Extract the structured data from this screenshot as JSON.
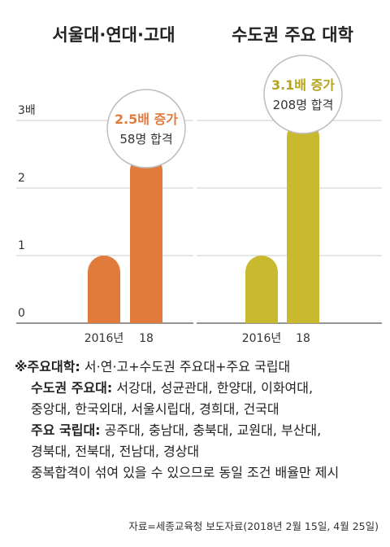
{
  "chart_data": [
    {
      "type": "bar",
      "title": "서울대·연대·고대",
      "categories": [
        "2016년",
        "18"
      ],
      "values": [
        1,
        2.5
      ],
      "ylim": [
        0,
        3
      ],
      "yticks": [
        "0",
        "1",
        "2",
        "3배"
      ],
      "bar_color": "#E07B3C",
      "callout": {
        "headline": "2.5배 증가",
        "sub": "58명 합격",
        "headline_color": "#E07B3C"
      }
    },
    {
      "type": "bar",
      "title": "수도권 주요 대학",
      "categories": [
        "2016년",
        "18"
      ],
      "values": [
        1,
        3.1
      ],
      "ylim": [
        0,
        3
      ],
      "bar_color": "#C9B92E",
      "callout": {
        "headline": "3.1배 증가",
        "sub": "208명 합격",
        "headline_color": "#B5A41C"
      }
    }
  ],
  "notes": {
    "main_label": "※주요대학:",
    "main_text": " 서·연·고+수도권 주요대+주요 국립대",
    "capital_label": "수도권 주요대:",
    "capital_text": " 서강대, 성균관대, 한양대, 이화여대,",
    "capital_text2": "중앙대, 한국외대, 서울시립대, 경희대, 건국대",
    "national_label": "주요 국립대:",
    "national_text": " 공주대, 충남대, 충북대, 교원대, 부산대,",
    "national_text2": "경북대, 전북대, 전남대, 경상대",
    "duplicate_note": "중복합격이 섞여 있을 수 있으므로 동일 조건 배율만 제시"
  },
  "source": "자료=세종교육청 보도자료(2018년 2월 15일, 4월 25일)"
}
